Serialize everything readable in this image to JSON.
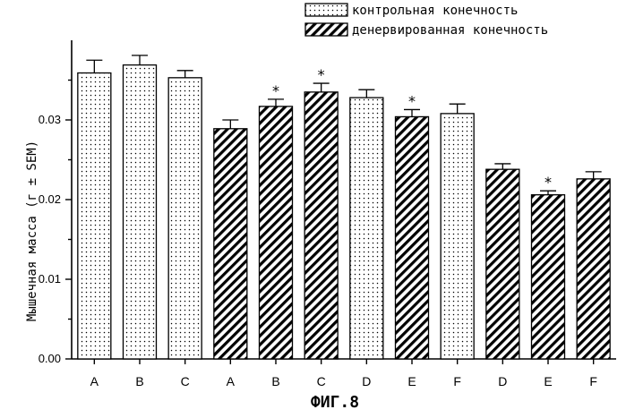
{
  "figure_caption": "ФИГ.8",
  "colors": {
    "ink": "#000000",
    "background": "#ffffff"
  },
  "chart_data": {
    "type": "bar",
    "title": "",
    "xlabel": "",
    "ylabel": "Мышечная масса (г ± SEM)",
    "ylim": [
      0,
      0.04
    ],
    "yticks": [
      "0.00",
      "0.01",
      "0.02",
      "0.03"
    ],
    "grid": false,
    "legend_position": "top-right",
    "legend": [
      {
        "label": "контрольная конечность",
        "pattern": "dots"
      },
      {
        "label": "денервированная конечность",
        "pattern": "hatch"
      }
    ],
    "categories": [
      "A",
      "B",
      "C",
      "A",
      "B",
      "C",
      "D",
      "E",
      "F",
      "D",
      "E",
      "F"
    ],
    "values": [
      0.0359,
      0.0369,
      0.0353,
      0.0289,
      0.0317,
      0.0335,
      0.0328,
      0.0304,
      0.0308,
      0.0238,
      0.0206,
      0.0226
    ],
    "errors": [
      0.0016,
      0.0012,
      0.0009,
      0.0011,
      0.0009,
      0.0011,
      0.001,
      0.0009,
      0.0012,
      0.0007,
      0.0005,
      0.0009
    ],
    "patterns": [
      "dots",
      "dots",
      "dots",
      "hatch",
      "hatch",
      "hatch",
      "dots",
      "hatch",
      "dots",
      "hatch",
      "hatch",
      "hatch"
    ],
    "significance": [
      "",
      "",
      "",
      "",
      "*",
      "*",
      "",
      "*",
      "",
      "",
      "*",
      ""
    ]
  }
}
